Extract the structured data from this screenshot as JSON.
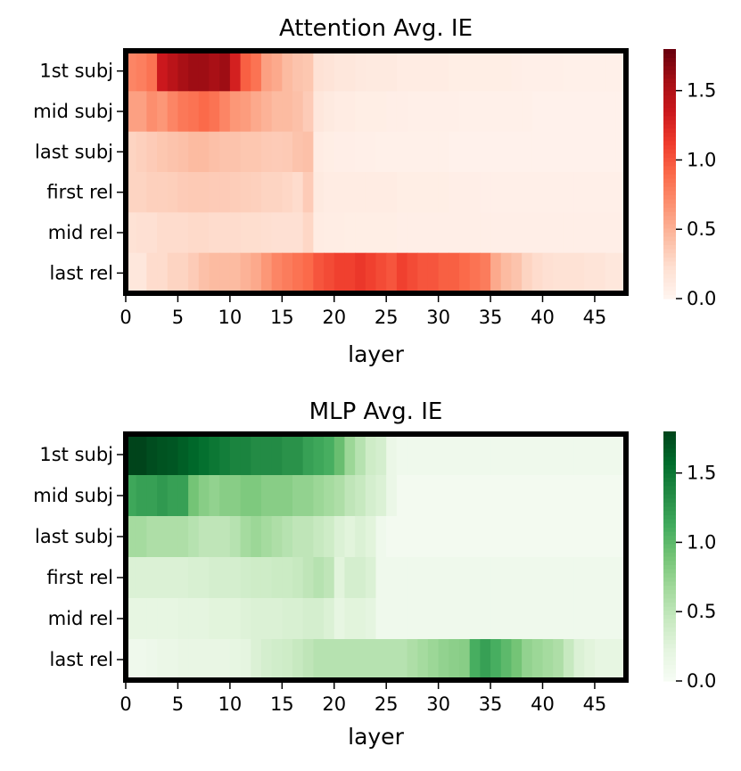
{
  "chart_data": [
    {
      "type": "heatmap",
      "title": "Attention Avg. IE",
      "xlabel": "layer",
      "ylabel": "",
      "colormap": "Reds",
      "row_labels": [
        "1st subj",
        "mid subj",
        "last subj",
        "first rel",
        "mid rel",
        "last rel"
      ],
      "x_ticks": [
        0,
        5,
        10,
        15,
        20,
        25,
        30,
        35,
        40,
        45
      ],
      "x_range": [
        0,
        48
      ],
      "colorbar_range": [
        0,
        1.8
      ],
      "colorbar_ticks": [
        "0.0",
        "0.5",
        "1.0",
        "1.5"
      ],
      "values": [
        [
          0.75,
          0.78,
          0.85,
          1.35,
          1.45,
          1.55,
          1.6,
          1.6,
          1.55,
          1.6,
          1.3,
          0.95,
          0.85,
          0.6,
          0.55,
          0.45,
          0.4,
          0.38,
          0.2,
          0.18,
          0.15,
          0.15,
          0.13,
          0.12,
          0.12,
          0.12,
          0.1,
          0.1,
          0.1,
          0.1,
          0.1,
          0.08,
          0.08,
          0.08,
          0.08,
          0.08,
          0.08,
          0.07,
          0.06,
          0.06,
          0.06,
          0.06,
          0.05,
          0.05,
          0.05,
          0.05,
          0.05,
          0.05
        ],
        [
          0.6,
          0.6,
          0.7,
          0.65,
          0.75,
          0.82,
          0.85,
          0.9,
          0.85,
          0.75,
          0.65,
          0.62,
          0.55,
          0.5,
          0.45,
          0.45,
          0.42,
          0.35,
          0.15,
          0.12,
          0.1,
          0.1,
          0.08,
          0.08,
          0.08,
          0.07,
          0.07,
          0.06,
          0.06,
          0.06,
          0.06,
          0.06,
          0.05,
          0.05,
          0.05,
          0.05,
          0.05,
          0.05,
          0.05,
          0.04,
          0.04,
          0.04,
          0.04,
          0.04,
          0.04,
          0.04,
          0.04,
          0.04
        ],
        [
          0.3,
          0.32,
          0.35,
          0.38,
          0.4,
          0.42,
          0.45,
          0.45,
          0.42,
          0.4,
          0.4,
          0.38,
          0.38,
          0.36,
          0.35,
          0.36,
          0.4,
          0.42,
          0.1,
          0.08,
          0.07,
          0.07,
          0.06,
          0.06,
          0.05,
          0.05,
          0.05,
          0.05,
          0.05,
          0.05,
          0.05,
          0.04,
          0.04,
          0.04,
          0.04,
          0.04,
          0.04,
          0.04,
          0.04,
          0.04,
          0.04,
          0.04,
          0.04,
          0.04,
          0.04,
          0.04,
          0.04,
          0.04
        ],
        [
          0.3,
          0.3,
          0.32,
          0.32,
          0.33,
          0.35,
          0.36,
          0.36,
          0.35,
          0.35,
          0.34,
          0.33,
          0.32,
          0.3,
          0.3,
          0.28,
          0.25,
          0.35,
          0.12,
          0.1,
          0.1,
          0.1,
          0.1,
          0.1,
          0.1,
          0.1,
          0.08,
          0.08,
          0.08,
          0.08,
          0.08,
          0.07,
          0.07,
          0.07,
          0.06,
          0.06,
          0.06,
          0.06,
          0.06,
          0.06,
          0.06,
          0.06,
          0.06,
          0.06,
          0.06,
          0.06,
          0.06,
          0.06
        ],
        [
          0.2,
          0.22,
          0.22,
          0.25,
          0.25,
          0.25,
          0.26,
          0.26,
          0.25,
          0.25,
          0.25,
          0.24,
          0.24,
          0.23,
          0.22,
          0.22,
          0.22,
          0.28,
          0.1,
          0.09,
          0.09,
          0.08,
          0.08,
          0.08,
          0.08,
          0.08,
          0.07,
          0.07,
          0.07,
          0.07,
          0.07,
          0.07,
          0.07,
          0.07,
          0.07,
          0.07,
          0.07,
          0.07,
          0.07,
          0.07,
          0.07,
          0.07,
          0.07,
          0.07,
          0.07,
          0.07,
          0.07,
          0.07
        ],
        [
          0.15,
          0.15,
          0.25,
          0.25,
          0.3,
          0.3,
          0.35,
          0.42,
          0.45,
          0.45,
          0.45,
          0.5,
          0.55,
          0.65,
          0.75,
          0.8,
          0.85,
          0.9,
          1.0,
          1.05,
          1.1,
          1.1,
          1.15,
          1.1,
          1.05,
          1.0,
          1.1,
          1.05,
          1.0,
          1.0,
          0.95,
          0.95,
          0.9,
          0.85,
          0.8,
          0.55,
          0.45,
          0.4,
          0.3,
          0.25,
          0.22,
          0.2,
          0.2,
          0.2,
          0.18,
          0.18,
          0.15,
          0.15
        ]
      ]
    },
    {
      "type": "heatmap",
      "title": "MLP Avg. IE",
      "xlabel": "layer",
      "ylabel": "",
      "colormap": "Greens",
      "row_labels": [
        "1st subj",
        "mid subj",
        "last subj",
        "first rel",
        "mid rel",
        "last rel"
      ],
      "x_ticks": [
        0,
        5,
        10,
        15,
        20,
        25,
        30,
        35,
        40,
        45
      ],
      "x_range": [
        0,
        48
      ],
      "colorbar_range": [
        0,
        1.8
      ],
      "colorbar_ticks": [
        "0.0",
        "0.5",
        "1.0",
        "1.5"
      ],
      "values": [
        [
          1.85,
          1.8,
          1.75,
          1.72,
          1.7,
          1.65,
          1.6,
          1.55,
          1.5,
          1.45,
          1.4,
          1.4,
          1.35,
          1.35,
          1.35,
          1.3,
          1.3,
          1.2,
          1.15,
          1.1,
          0.95,
          0.7,
          0.55,
          0.4,
          0.35,
          0.15,
          0.1,
          0.1,
          0.1,
          0.1,
          0.1,
          0.1,
          0.1,
          0.1,
          0.1,
          0.1,
          0.1,
          0.1,
          0.1,
          0.1,
          0.1,
          0.1,
          0.1,
          0.1,
          0.1,
          0.1,
          0.1,
          0.1
        ],
        [
          1.15,
          1.2,
          1.2,
          1.25,
          1.2,
          1.2,
          0.9,
          0.8,
          0.75,
          0.8,
          0.8,
          0.85,
          0.85,
          0.8,
          0.8,
          0.8,
          0.75,
          0.75,
          0.7,
          0.65,
          0.6,
          0.5,
          0.45,
          0.35,
          0.3,
          0.15,
          0.05,
          0.05,
          0.05,
          0.05,
          0.05,
          0.05,
          0.05,
          0.05,
          0.05,
          0.05,
          0.05,
          0.05,
          0.05,
          0.05,
          0.05,
          0.05,
          0.05,
          0.05,
          0.05,
          0.05,
          0.05,
          0.05
        ],
        [
          0.65,
          0.65,
          0.6,
          0.6,
          0.6,
          0.6,
          0.55,
          0.5,
          0.5,
          0.5,
          0.55,
          0.65,
          0.7,
          0.65,
          0.6,
          0.55,
          0.5,
          0.5,
          0.45,
          0.4,
          0.3,
          0.25,
          0.3,
          0.25,
          0.1,
          0.05,
          0.05,
          0.05,
          0.05,
          0.05,
          0.05,
          0.05,
          0.05,
          0.05,
          0.05,
          0.05,
          0.05,
          0.05,
          0.05,
          0.05,
          0.05,
          0.05,
          0.05,
          0.05,
          0.05,
          0.05,
          0.05,
          0.05
        ],
        [
          0.3,
          0.3,
          0.3,
          0.3,
          0.3,
          0.3,
          0.32,
          0.32,
          0.35,
          0.35,
          0.35,
          0.38,
          0.4,
          0.4,
          0.42,
          0.42,
          0.45,
          0.5,
          0.55,
          0.5,
          0.25,
          0.35,
          0.35,
          0.3,
          0.1,
          0.1,
          0.1,
          0.1,
          0.1,
          0.1,
          0.1,
          0.1,
          0.1,
          0.1,
          0.1,
          0.1,
          0.1,
          0.1,
          0.1,
          0.1,
          0.1,
          0.1,
          0.1,
          0.1,
          0.1,
          0.1,
          0.1,
          0.1
        ],
        [
          0.2,
          0.2,
          0.2,
          0.2,
          0.2,
          0.22,
          0.22,
          0.22,
          0.25,
          0.25,
          0.25,
          0.28,
          0.3,
          0.3,
          0.3,
          0.32,
          0.32,
          0.35,
          0.35,
          0.3,
          0.2,
          0.25,
          0.25,
          0.22,
          0.1,
          0.1,
          0.1,
          0.1,
          0.1,
          0.1,
          0.1,
          0.1,
          0.1,
          0.1,
          0.1,
          0.1,
          0.1,
          0.1,
          0.1,
          0.1,
          0.1,
          0.1,
          0.1,
          0.1,
          0.1,
          0.1,
          0.1,
          0.1
        ],
        [
          0.1,
          0.1,
          0.12,
          0.15,
          0.15,
          0.18,
          0.18,
          0.18,
          0.18,
          0.18,
          0.2,
          0.22,
          0.3,
          0.35,
          0.38,
          0.4,
          0.45,
          0.5,
          0.55,
          0.55,
          0.55,
          0.55,
          0.55,
          0.55,
          0.55,
          0.55,
          0.55,
          0.6,
          0.65,
          0.7,
          0.75,
          0.78,
          0.8,
          1.1,
          1.2,
          1.1,
          1.0,
          0.9,
          0.75,
          0.7,
          0.65,
          0.6,
          0.45,
          0.3,
          0.25,
          0.2,
          0.2,
          0.2
        ]
      ]
    }
  ]
}
